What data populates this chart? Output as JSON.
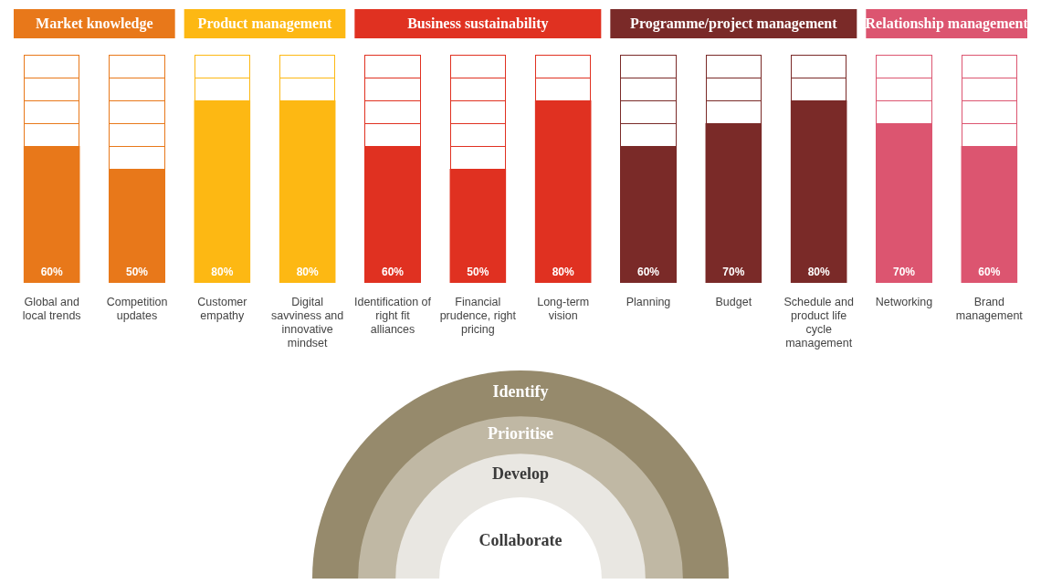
{
  "chart_data": {
    "type": "bar",
    "categories": [
      "Global and local trends",
      "Competition updates",
      "Customer empathy",
      "Digital savviness and innovative mindset",
      "Identification of right fit alliances",
      "Financial prudence, right pricing",
      "Long-term vision",
      "Planning",
      "Budget",
      "Schedule and product life cycle management",
      "Networking",
      "Brand management"
    ],
    "series": [
      {
        "name": "Market knowledge",
        "color": "#e8781a",
        "values": [
          60,
          50,
          null,
          null,
          null,
          null,
          null,
          null,
          null,
          null,
          null,
          null
        ],
        "value_labels": [
          "60%",
          "50%",
          null,
          null,
          null,
          null,
          null,
          null,
          null,
          null,
          null,
          null
        ]
      },
      {
        "name": "Product management",
        "color": "#fdb813",
        "values": [
          null,
          null,
          80,
          80,
          null,
          null,
          null,
          null,
          null,
          null,
          null,
          null
        ],
        "value_labels": [
          null,
          null,
          "80%",
          "80%",
          null,
          null,
          null,
          null,
          null,
          null,
          null,
          null
        ]
      },
      {
        "name": "Business sustainability",
        "color": "#e03121",
        "values": [
          null,
          null,
          null,
          null,
          60,
          50,
          80,
          null,
          null,
          null,
          null,
          null
        ],
        "value_labels": [
          null,
          null,
          null,
          null,
          "60%",
          "50%",
          "80%",
          null,
          null,
          null,
          null,
          null
        ]
      },
      {
        "name": "Programme/project management",
        "color": "#7a2a28",
        "values": [
          null,
          null,
          null,
          null,
          null,
          null,
          null,
          60,
          70,
          80,
          null,
          null
        ],
        "value_labels": [
          null,
          null,
          null,
          null,
          null,
          null,
          null,
          "60%",
          "70%",
          "80%",
          null,
          null
        ]
      },
      {
        "name": "Relationship management",
        "color": "#dc5570",
        "values": [
          null,
          null,
          null,
          null,
          null,
          null,
          null,
          null,
          null,
          null,
          70,
          60
        ],
        "value_labels": [
          null,
          null,
          null,
          null,
          null,
          null,
          null,
          null,
          null,
          null,
          "70%",
          "60%"
        ]
      }
    ],
    "ylim": [
      0,
      100
    ],
    "tick_labels": "x",
    "annotations": [
      "Identify",
      "Prioritise",
      "Develop",
      "Collaborate"
    ]
  }
}
